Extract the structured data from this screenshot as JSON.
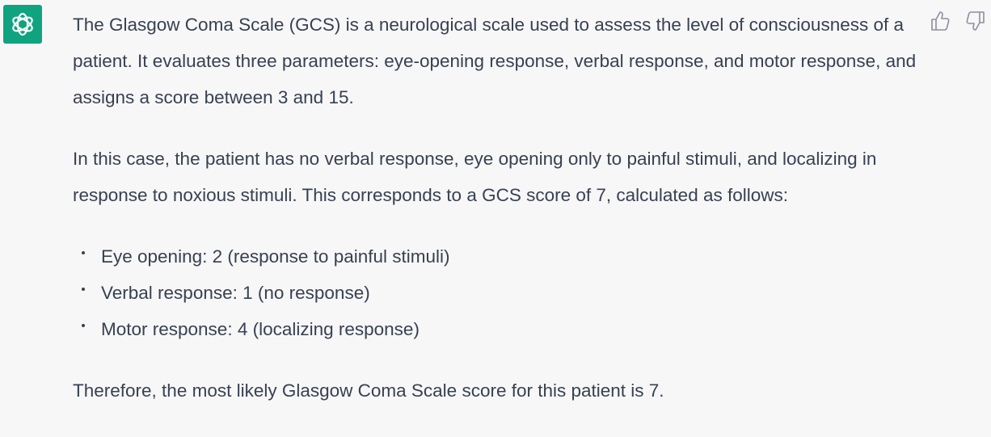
{
  "message": {
    "paragraphs": [
      "The Glasgow Coma Scale (GCS) is a neurological scale used to assess the level of consciousness of a patient. It evaluates three parameters: eye-opening response, verbal response, and motor response, and assigns a score between 3 and 15.",
      "In this case, the patient has no verbal response, eye opening only to painful stimuli, and localizing in response to noxious stimuli. This corresponds to a GCS score of 7, calculated as follows:"
    ],
    "list": [
      "Eye opening: 2 (response to painful stimuli)",
      "Verbal response: 1 (no response)",
      "Motor response: 4 (localizing response)"
    ],
    "conclusion": "Therefore, the most likely Glasgow Coma Scale score for this patient is 7."
  }
}
